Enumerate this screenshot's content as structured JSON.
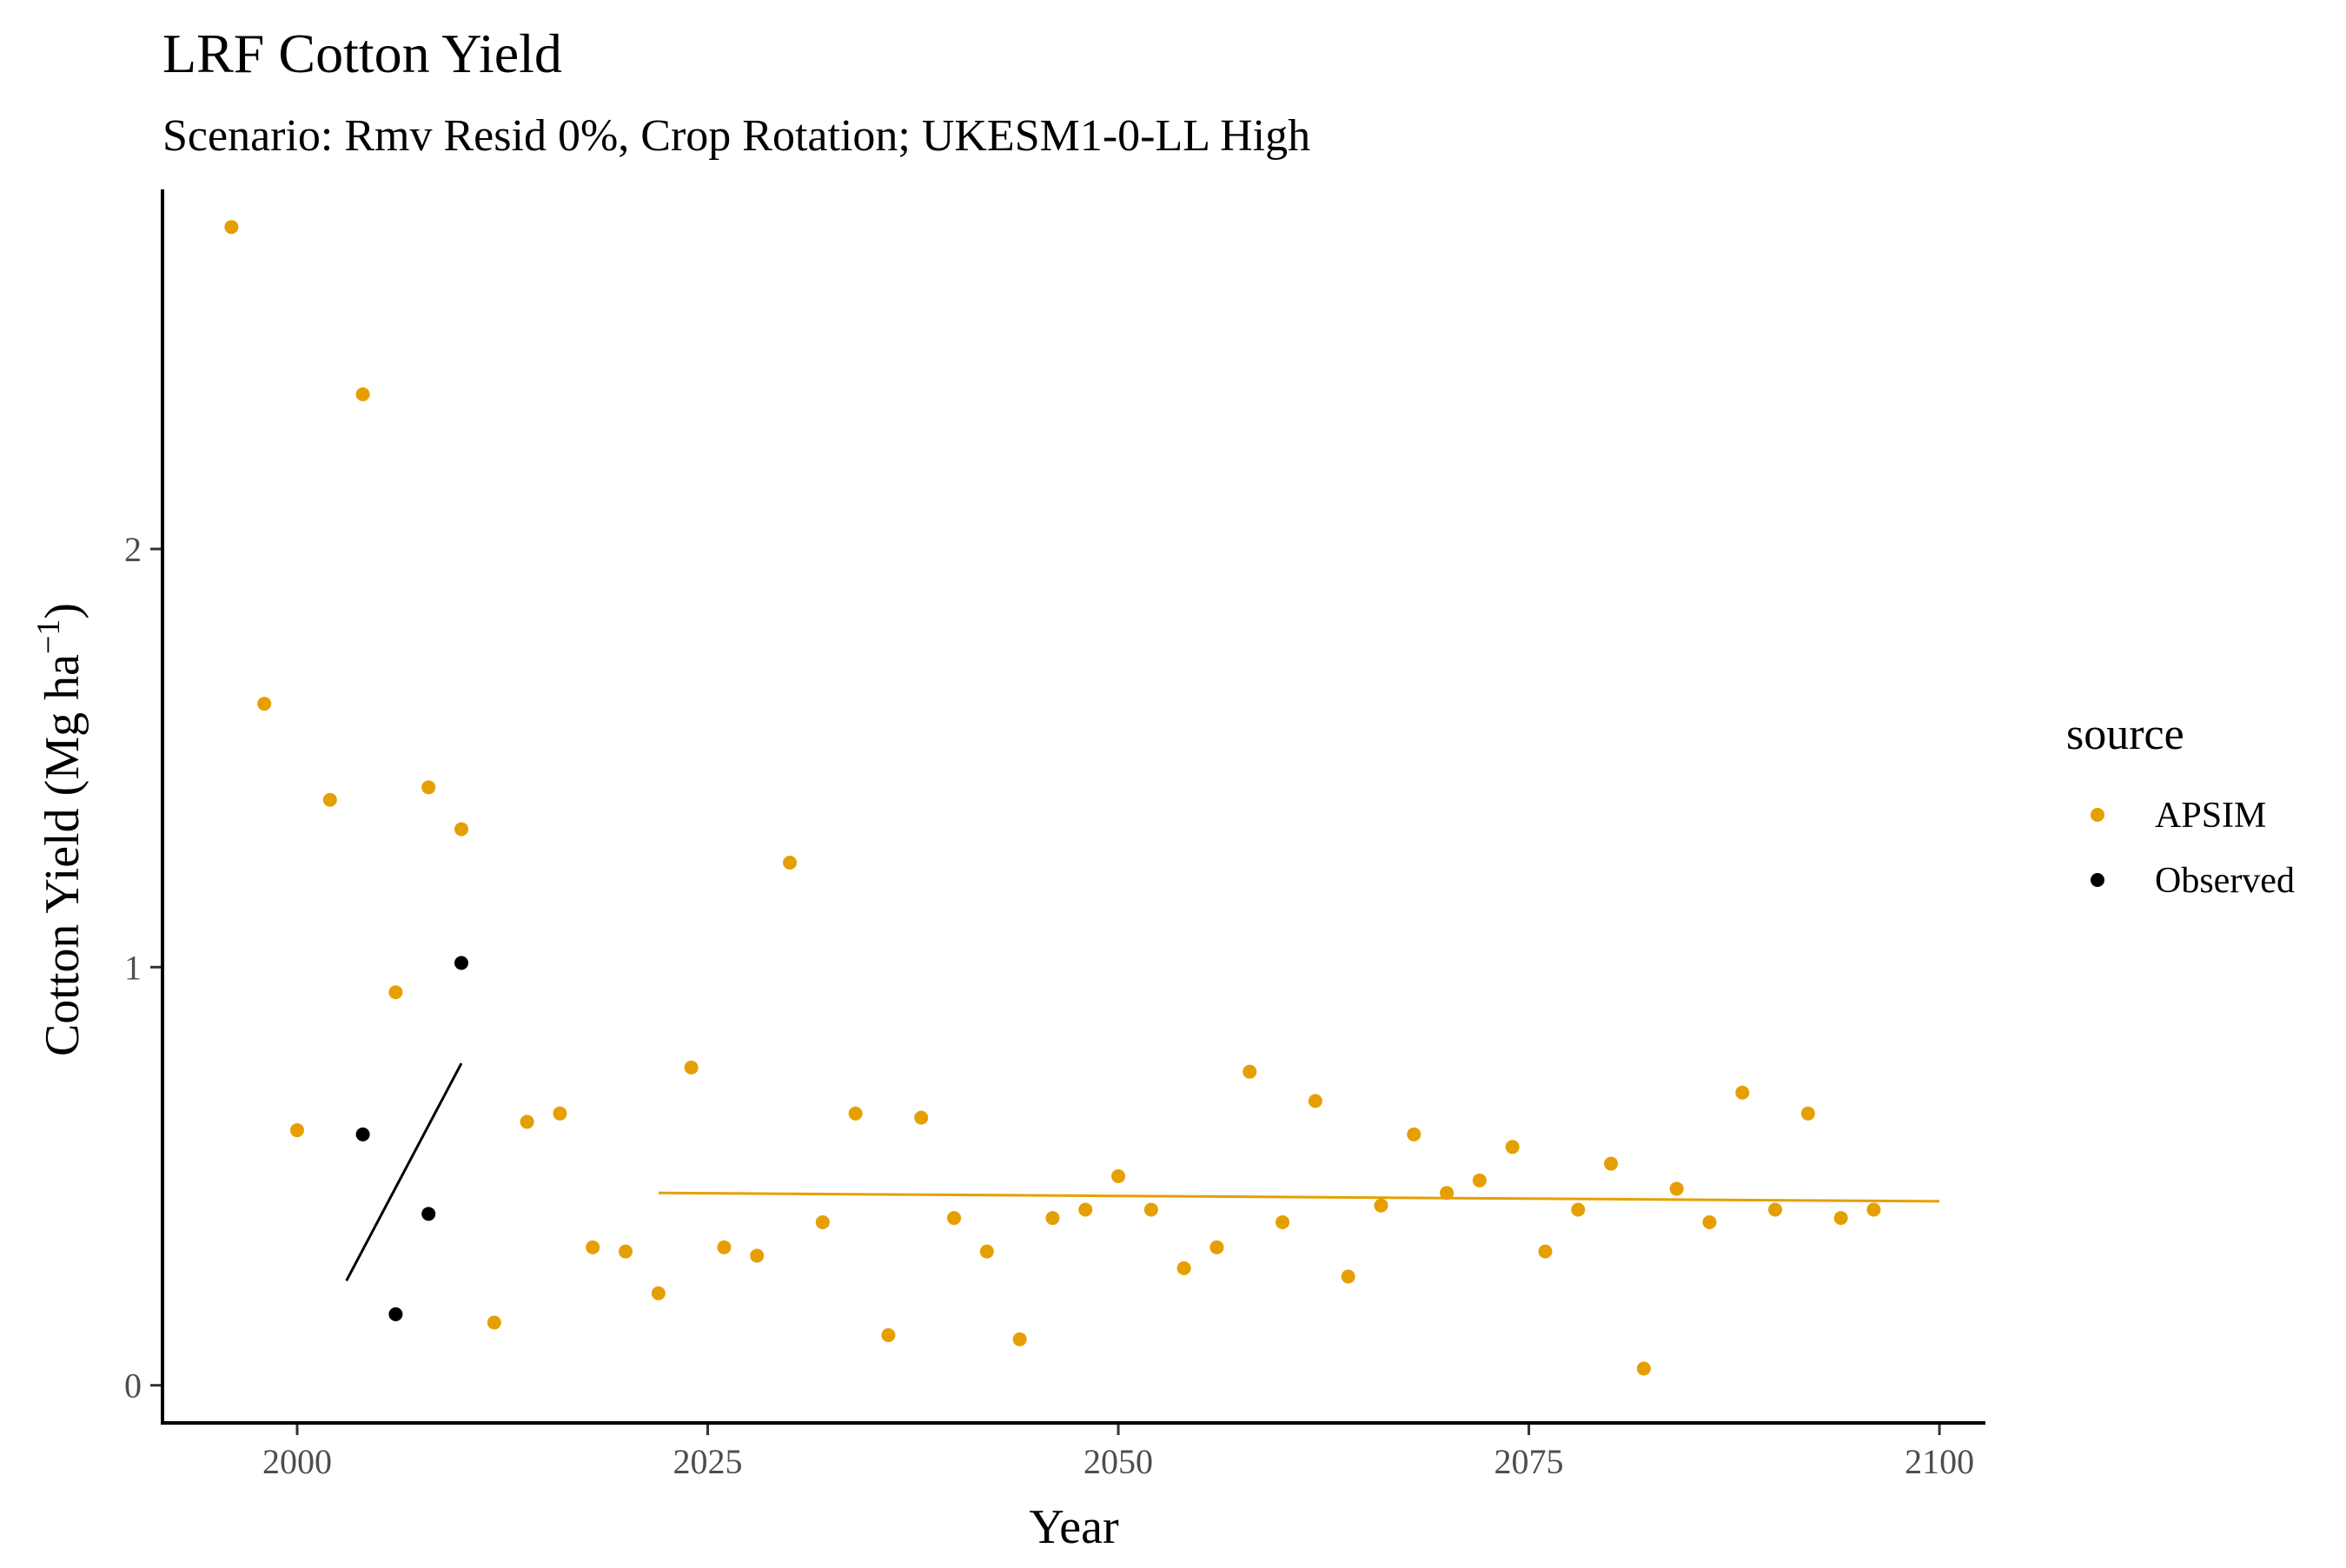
{
  "chart_data": {
    "type": "scatter",
    "title": "LRF Cotton Yield",
    "subtitle": "Scenario: Rmv Resid 0%, Crop Rotation; UKESM1-0-LL High",
    "xlabel": "Year",
    "ylabel_main": "Cotton Yield (Mg ha",
    "ylabel_sup": "−1",
    "ylabel_close": ")",
    "xlim": [
      1991.8,
      2102.8
    ],
    "ylim": [
      -0.09,
      2.86
    ],
    "xticks": [
      2000,
      2025,
      2050,
      2075,
      2100
    ],
    "yticks": [
      0,
      1,
      2
    ],
    "grid": false,
    "legend": {
      "title": "source",
      "placement": "right",
      "entries": [
        {
          "label": "APSIM",
          "color": "#E69F00"
        },
        {
          "label": "Observed",
          "color": "#000000"
        }
      ]
    },
    "series": [
      {
        "name": "APSIM",
        "color": "#E69F00",
        "points": [
          [
            1996,
            2.77
          ],
          [
            1998,
            1.63
          ],
          [
            2000,
            0.61
          ],
          [
            2002,
            1.4
          ],
          [
            2004,
            2.37
          ],
          [
            2006,
            0.94
          ],
          [
            2008,
            1.43
          ],
          [
            2010,
            1.33
          ],
          [
            2012,
            0.15
          ],
          [
            2014,
            0.63
          ],
          [
            2016,
            0.65
          ],
          [
            2018,
            0.33
          ],
          [
            2020,
            0.32
          ],
          [
            2022,
            0.22
          ],
          [
            2024,
            0.76
          ],
          [
            2026,
            0.33
          ],
          [
            2028,
            0.31
          ],
          [
            2030,
            1.25
          ],
          [
            2032,
            0.39
          ],
          [
            2034,
            0.65
          ],
          [
            2036,
            0.12
          ],
          [
            2038,
            0.64
          ],
          [
            2040,
            0.4
          ],
          [
            2042,
            0.32
          ],
          [
            2044,
            0.11
          ],
          [
            2046,
            0.4
          ],
          [
            2048,
            0.42
          ],
          [
            2050,
            0.5
          ],
          [
            2052,
            0.42
          ],
          [
            2054,
            0.28
          ],
          [
            2056,
            0.33
          ],
          [
            2058,
            0.75
          ],
          [
            2060,
            0.39
          ],
          [
            2062,
            0.68
          ],
          [
            2064,
            0.26
          ],
          [
            2066,
            0.43
          ],
          [
            2068,
            0.6
          ],
          [
            2070,
            0.46
          ],
          [
            2072,
            0.49
          ],
          [
            2074,
            0.57
          ],
          [
            2076,
            0.32
          ],
          [
            2078,
            0.42
          ],
          [
            2080,
            0.53
          ],
          [
            2082,
            0.04
          ],
          [
            2084,
            0.47
          ],
          [
            2086,
            0.39
          ],
          [
            2088,
            0.7
          ],
          [
            2090,
            0.42
          ],
          [
            2092,
            0.65
          ],
          [
            2094,
            0.4
          ],
          [
            2096,
            0.42
          ]
        ],
        "trend": [
          [
            2022,
            0.46
          ],
          [
            2100,
            0.44
          ]
        ]
      },
      {
        "name": "Observed",
        "color": "#000000",
        "points": [
          [
            2004,
            0.6
          ],
          [
            2006,
            0.17
          ],
          [
            2008,
            0.41
          ],
          [
            2010,
            1.01
          ]
        ],
        "trend": [
          [
            2003,
            0.25
          ],
          [
            2010,
            0.77
          ]
        ]
      }
    ]
  }
}
